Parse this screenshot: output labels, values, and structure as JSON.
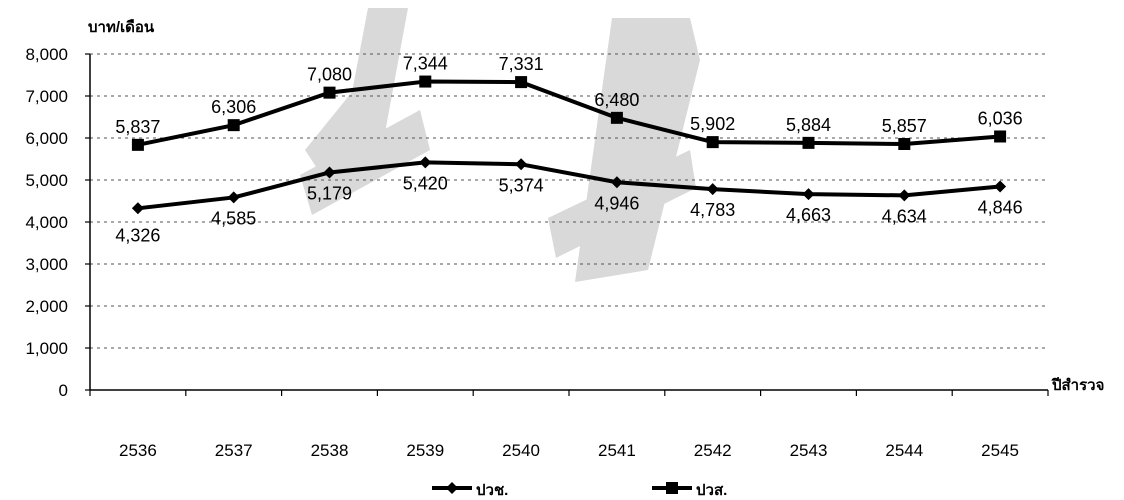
{
  "chart_data": {
    "type": "line",
    "ylabel": "บาท/เดือน",
    "xlabel": "ปีสำรวจ",
    "ylim": [
      0,
      8000
    ],
    "yticks": [
      "0",
      "1,000",
      "2,000",
      "3,000",
      "4,000",
      "5,000",
      "6,000",
      "7,000",
      "8,000"
    ],
    "categories": [
      "2536",
      "2537",
      "2538",
      "2539",
      "2540",
      "2541",
      "2542",
      "2543",
      "2544",
      "2545"
    ],
    "grid": true,
    "legend_position": "bottom",
    "series": [
      {
        "name": "ปวช.",
        "marker": "diamond",
        "values": [
          4326,
          4585,
          5179,
          5420,
          5374,
          4946,
          4783,
          4663,
          4634,
          4846
        ],
        "labels": [
          "4,326",
          "4,585",
          "5,179",
          "5,420",
          "5,374",
          "4,946",
          "4,783",
          "4,663",
          "4,634",
          "4,846"
        ]
      },
      {
        "name": "ปวส.",
        "marker": "square",
        "values": [
          5837,
          6306,
          7080,
          7344,
          7331,
          6480,
          5902,
          5884,
          5857,
          6036
        ],
        "labels": [
          "5,837",
          "6,306",
          "7,080",
          "7,344",
          "7,331",
          "6,480",
          "5,902",
          "5,884",
          "5,857",
          "6,036"
        ]
      }
    ],
    "colors": {
      "line": "#000000",
      "grid": "#555555",
      "watermark": "#d9d9d9"
    }
  }
}
